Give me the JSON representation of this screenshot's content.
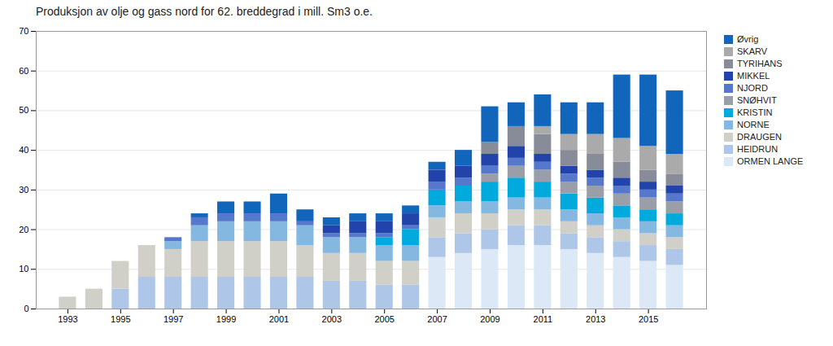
{
  "chart_data": {
    "type": "bar",
    "title": "Produksjon av olje og gass nord for 62. breddegrad i mill. Sm3 o.e.",
    "stacked": true,
    "x": [
      1993,
      1994,
      1995,
      1996,
      1997,
      1998,
      1999,
      2000,
      2001,
      2002,
      2003,
      2004,
      2005,
      2006,
      2007,
      2008,
      2009,
      2010,
      2011,
      2012,
      2013,
      2014,
      2015,
      2016
    ],
    "series": [
      {
        "name": "ORMEN LANGE",
        "color": "#dce8f5",
        "values": [
          0,
          0,
          0,
          0,
          0,
          0,
          0,
          0,
          0,
          0,
          0,
          0,
          0,
          0,
          13,
          14,
          15,
          16,
          16,
          15,
          14,
          13,
          12,
          11
        ]
      },
      {
        "name": "HEIDRUN",
        "color": "#aec6e8",
        "values": [
          0,
          0,
          5,
          8,
          8,
          8,
          8,
          8,
          8,
          8,
          7,
          7,
          6,
          6,
          5,
          5,
          5,
          5,
          5,
          4,
          4,
          4,
          4,
          4
        ]
      },
      {
        "name": "DRAUGEN",
        "color": "#d0cfc8",
        "values": [
          3,
          5,
          7,
          8,
          7,
          9,
          9,
          9,
          9,
          8,
          7,
          7,
          6,
          6,
          5,
          5,
          4,
          4,
          4,
          3,
          3,
          3,
          3,
          3
        ]
      },
      {
        "name": "NORNE",
        "color": "#85b8e0",
        "values": [
          0,
          0,
          0,
          0,
          2,
          4,
          5,
          5,
          5,
          5,
          4,
          4,
          4,
          4,
          3,
          3,
          3,
          3,
          3,
          3,
          3,
          3,
          3,
          3
        ]
      },
      {
        "name": "KRISTIN",
        "color": "#00aadd",
        "values": [
          0,
          0,
          0,
          0,
          0,
          0,
          0,
          0,
          0,
          0,
          0,
          0,
          2,
          4,
          4,
          4,
          5,
          5,
          4,
          4,
          4,
          3,
          3,
          3
        ]
      },
      {
        "name": "SNØHVIT",
        "color": "#9a9ea8",
        "values": [
          0,
          0,
          0,
          0,
          0,
          0,
          0,
          0,
          0,
          0,
          0,
          0,
          0,
          0,
          0,
          0,
          2,
          3,
          3,
          3,
          3,
          3,
          3,
          3
        ]
      },
      {
        "name": "NJORD",
        "color": "#5577cc",
        "values": [
          0,
          0,
          0,
          0,
          1,
          2,
          2,
          2,
          2,
          1,
          1,
          1,
          1,
          1,
          2,
          2,
          2,
          2,
          2,
          2,
          2,
          2,
          2,
          2
        ]
      },
      {
        "name": "MIKKEL",
        "color": "#2244aa",
        "values": [
          0,
          0,
          0,
          0,
          0,
          0,
          0,
          0,
          0,
          0,
          2,
          3,
          3,
          3,
          3,
          3,
          3,
          3,
          2,
          2,
          2,
          2,
          2,
          2
        ]
      },
      {
        "name": "TYRIHANS",
        "color": "#888c98",
        "values": [
          0,
          0,
          0,
          0,
          0,
          0,
          0,
          0,
          0,
          0,
          0,
          0,
          0,
          0,
          0,
          0,
          3,
          5,
          5,
          4,
          4,
          4,
          3,
          3
        ]
      },
      {
        "name": "SKARV",
        "color": "#aaaaaa",
        "values": [
          0,
          0,
          0,
          0,
          0,
          0,
          0,
          0,
          0,
          0,
          0,
          0,
          0,
          0,
          0,
          0,
          0,
          0,
          2,
          4,
          5,
          6,
          6,
          5
        ]
      },
      {
        "name": "Øvrig",
        "color": "#1166bb",
        "values": [
          0,
          0,
          0,
          0,
          0,
          1,
          3,
          3,
          5,
          3,
          2,
          2,
          2,
          2,
          2,
          4,
          9,
          6,
          8,
          8,
          8,
          16,
          18,
          16
        ]
      }
    ],
    "xlim": [
      1991.8,
      2017.2
    ],
    "xticks": [
      1993,
      1995,
      1997,
      1999,
      2001,
      2003,
      2005,
      2007,
      2009,
      2011,
      2013,
      2015
    ],
    "ylim": [
      0,
      70
    ],
    "yticks": [
      0,
      10,
      20,
      30,
      40,
      50,
      60,
      70
    ],
    "grid": true,
    "legend": "right"
  }
}
